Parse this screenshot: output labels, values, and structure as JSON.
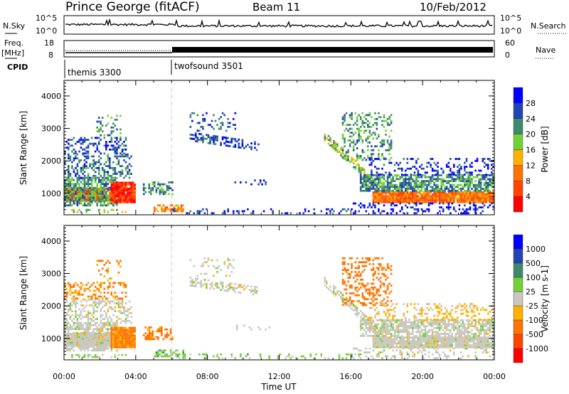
{
  "header": {
    "title": "Prince George (fitACF)",
    "beam": "Beam 11",
    "date": "10/Feb/2012"
  },
  "status_panels": {
    "nsky_label": "N.Sky",
    "nsky_top": "10^5",
    "nsky_bottom": "10^0",
    "nsearch_label": "N.Search",
    "freq_label_1": "Freq.",
    "freq_label_2": "[MHz]",
    "freq_top": "18",
    "freq_bottom": "8",
    "nave_label": "Nave",
    "nave_top": "60",
    "nave_bottom": "0",
    "cpid_label": "CPID",
    "cpid_segments": [
      {
        "name": "themis 3300",
        "start_hour": 0
      },
      {
        "name": "twofsound 3501",
        "start_hour": 6
      }
    ]
  },
  "chart_data": {
    "type": "heatmap",
    "xlabel": "Time UT",
    "xlim": [
      0,
      24
    ],
    "xticks": [
      "00:00",
      "04:00",
      "08:00",
      "12:00",
      "16:00",
      "20:00",
      "00:00"
    ],
    "ylabel": "Slant Range [km]",
    "ylim": [
      340,
      4480
    ],
    "yticks": [
      "1000",
      "2000",
      "3000",
      "4000"
    ],
    "panels": [
      {
        "name": "power",
        "colorbar_label": "Power [dB]",
        "colorbar_ticks": [
          "4",
          "8",
          "12",
          "16",
          "20",
          "24",
          "28"
        ],
        "bins": [
          0,
          4,
          8,
          12,
          16,
          20,
          24,
          28,
          32
        ],
        "colors": [
          "#0000ff",
          "#2244b4",
          "#3e8a6c",
          "#72d234",
          "#ffb000",
          "#ff7400",
          "#ff4400",
          "#ff0000"
        ]
      },
      {
        "name": "velocity",
        "colorbar_label": "Velocity [m s-1]",
        "colorbar_ticks": [
          "1000",
          "500",
          "100",
          "25",
          "-25",
          "-100",
          "-500",
          "-1000"
        ],
        "bins": [
          1500,
          1000,
          500,
          100,
          25,
          -25,
          -100,
          -500,
          -1000,
          -1500
        ],
        "colors": [
          "#0000ff",
          "#2244b4",
          "#3e8a6c",
          "#72d234",
          "#c8c8c0",
          "#ffb000",
          "#ff7400",
          "#ff4400",
          "#ff0000"
        ]
      }
    ],
    "echo_regions": [
      {
        "t": [
          0,
          2.7
        ],
        "r0": [
          750,
          750
        ],
        "r1": [
          1150,
          1150
        ],
        "power": 25,
        "vel": 0,
        "density": 0.95
      },
      {
        "t": [
          0,
          3.0
        ],
        "r0": [
          600,
          600
        ],
        "r1": [
          1450,
          1450
        ],
        "power": 11,
        "vel": 0,
        "density": 0.7
      },
      {
        "t": [
          2.6,
          4.0
        ],
        "r0": [
          700,
          700
        ],
        "r1": [
          1350,
          1350
        ],
        "power": 28,
        "vel": -150,
        "density": 0.95
      },
      {
        "t": [
          0,
          3.8
        ],
        "r0": [
          1450,
          1450
        ],
        "r1": [
          2200,
          2200
        ],
        "power": 8,
        "vel": 0,
        "density": 0.4
      },
      {
        "t": [
          0,
          3.5
        ],
        "r0": [
          2200,
          2200
        ],
        "r1": [
          2700,
          2700
        ],
        "power": 6,
        "vel": -120,
        "density": 0.35
      },
      {
        "t": [
          1.8,
          3.2
        ],
        "r0": [
          2700,
          2700
        ],
        "r1": [
          3400,
          3400
        ],
        "power": 10,
        "vel": -120,
        "density": 0.2
      },
      {
        "t": [
          0.4,
          3.5
        ],
        "r0": [
          400,
          400
        ],
        "r1": [
          520,
          520
        ],
        "power": 14,
        "vel": 40,
        "density": 0.3
      },
      {
        "t": [
          4.4,
          6.0
        ],
        "r0": [
          950,
          950
        ],
        "r1": [
          1350,
          1350
        ],
        "power": 10,
        "vel": -200,
        "density": 0.5
      },
      {
        "t": [
          5.0,
          6.6
        ],
        "r0": [
          420,
          420
        ],
        "r1": [
          620,
          620
        ],
        "power": 20,
        "vel": 60,
        "density": 0.6
      },
      {
        "t": [
          7.0,
          10.8
        ],
        "r0": [
          2600,
          2300
        ],
        "r1": [
          2850,
          2550
        ],
        "power": 6,
        "vel": 0,
        "density": 0.45
      },
      {
        "t": [
          7.0,
          9.5
        ],
        "r0": [
          2900,
          2900
        ],
        "r1": [
          3500,
          3500
        ],
        "power": 7,
        "vel": 0,
        "density": 0.15
      },
      {
        "t": [
          6.0,
          16.0
        ],
        "r0": [
          360,
          360
        ],
        "r1": [
          520,
          520
        ],
        "power": 5,
        "vel": 50,
        "density": 0.2
      },
      {
        "t": [
          9.5,
          11.5
        ],
        "r0": [
          1250,
          1250
        ],
        "r1": [
          1400,
          1400
        ],
        "power": 4,
        "vel": 0,
        "density": 0.15
      },
      {
        "t": [
          14.5,
          17.8
        ],
        "r0": [
          2600,
          900
        ],
        "r1": [
          2900,
          1150
        ],
        "power": 14,
        "vel": 0,
        "density": 0.6
      },
      {
        "t": [
          15.5,
          18.3
        ],
        "r0": [
          2000,
          2000
        ],
        "r1": [
          3450,
          3450
        ],
        "power": 11,
        "vel": -250,
        "density": 0.3
      },
      {
        "t": [
          17.2,
          24
        ],
        "r0": [
          700,
          700
        ],
        "r1": [
          1050,
          1050
        ],
        "power": 23,
        "vel": 0,
        "density": 0.95
      },
      {
        "t": [
          16.5,
          24
        ],
        "r0": [
          1050,
          1050
        ],
        "r1": [
          1550,
          1550
        ],
        "power": 10,
        "vel": 0,
        "density": 0.7
      },
      {
        "t": [
          17.0,
          24
        ],
        "r0": [
          1550,
          1550
        ],
        "r1": [
          2050,
          2050
        ],
        "power": 4,
        "vel": -40,
        "density": 0.25
      },
      {
        "t": [
          16.0,
          24
        ],
        "r0": [
          360,
          360
        ],
        "r1": [
          700,
          700
        ],
        "power": 3,
        "vel": 0,
        "density": 0.25
      }
    ]
  }
}
